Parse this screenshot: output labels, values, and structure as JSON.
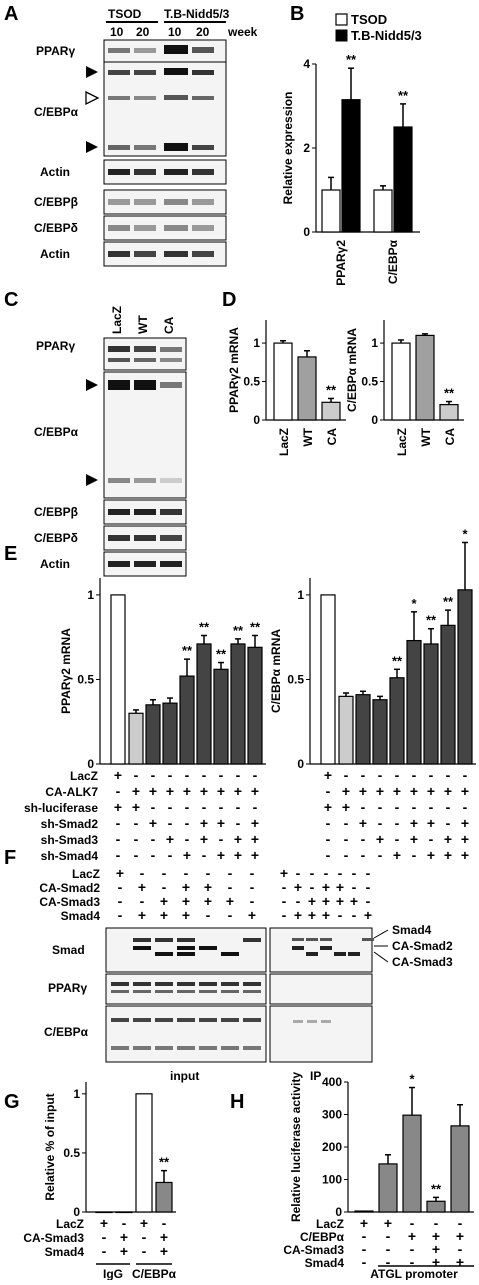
{
  "panels": {
    "A": "A",
    "B": "B",
    "C": "C",
    "D": "D",
    "E": "E",
    "F": "F",
    "G": "G",
    "H": "H"
  },
  "panel_a": {
    "groups": [
      "TSOD",
      "T.B-Nidd5/3"
    ],
    "weeks": [
      "10",
      "20",
      "10",
      "20"
    ],
    "week_label": "week",
    "blots": [
      "PPARγ",
      "C/EBPα",
      "Actin",
      "C/EBPβ",
      "C/EBPδ",
      "Actin"
    ]
  },
  "panel_c": {
    "lanes": [
      "LacZ",
      "WT",
      "CA"
    ],
    "blots": [
      "PPARγ",
      "C/EBPα",
      "C/EBPβ",
      "C/EBPδ",
      "Actin"
    ]
  },
  "panel_f": {
    "rows": [
      "LacZ",
      "CA-Smad2",
      "CA-Smad3",
      "Smad4"
    ],
    "blots": [
      "Smad",
      "PPARγ",
      "C/EBPα"
    ],
    "band_labels": [
      "Smad4",
      "CA-Smad2",
      "CA-Smad3"
    ],
    "bottom": [
      "input",
      "IP"
    ],
    "signs": [
      [
        "+",
        "-",
        "-",
        "-",
        "-",
        "-",
        "-"
      ],
      [
        "-",
        "+",
        "-",
        "+",
        "+",
        "-",
        "-"
      ],
      [
        "-",
        "-",
        "+",
        "+",
        "+",
        "+",
        "-"
      ],
      [
        "-",
        "+",
        "+",
        "+",
        "-",
        "-",
        "+"
      ]
    ]
  },
  "chart_data": [
    {
      "panel": "B",
      "type": "bar",
      "categories": [
        "PPARγ2",
        "C/EBPα"
      ],
      "series": [
        {
          "name": "TSOD",
          "values": [
            1.0,
            1.0
          ],
          "errors": [
            0.3,
            0.1
          ]
        },
        {
          "name": "T.B-Nidd5/3",
          "values": [
            3.15,
            2.5
          ],
          "errors": [
            0.75,
            0.55
          ]
        }
      ],
      "significance": [
        "**",
        "**"
      ],
      "ylabel": "Relative expression",
      "ylim": [
        0,
        4
      ],
      "yticks": [
        0,
        2,
        4
      ]
    },
    {
      "panel": "D-left",
      "type": "bar",
      "categories": [
        "LacZ",
        "WT",
        "CA"
      ],
      "values": [
        1.0,
        0.82,
        0.23
      ],
      "errors": [
        0.03,
        0.08,
        0.05
      ],
      "significance": [
        "",
        "",
        "**"
      ],
      "ylabel": "PPARγ2 mRNA",
      "ylim": [
        0,
        1.3
      ],
      "yticks": [
        0,
        0.5,
        1
      ]
    },
    {
      "panel": "D-right",
      "type": "bar",
      "categories": [
        "LacZ",
        "WT",
        "CA"
      ],
      "values": [
        1.0,
        1.1,
        0.2
      ],
      "errors": [
        0.04,
        0.02,
        0.04
      ],
      "significance": [
        "",
        "",
        "**"
      ],
      "ylabel": "C/EBPα mRNA",
      "ylim": [
        0,
        1.3
      ],
      "yticks": [
        0,
        0.5,
        1
      ]
    },
    {
      "panel": "E-left",
      "type": "bar",
      "values": [
        1.0,
        0.3,
        0.35,
        0.36,
        0.52,
        0.71,
        0.56,
        0.71,
        0.69
      ],
      "errors": [
        0,
        0.02,
        0.03,
        0.03,
        0.1,
        0.05,
        0.04,
        0.03,
        0.07
      ],
      "significance": [
        "",
        "",
        "",
        "",
        "**",
        "**",
        "**",
        "**",
        "**"
      ],
      "ylabel": "PPARγ2 mRNA",
      "ylim": [
        0,
        1.1
      ],
      "yticks": [
        0,
        0.5,
        1
      ]
    },
    {
      "panel": "E-right",
      "type": "bar",
      "values": [
        1.0,
        0.4,
        0.41,
        0.38,
        0.51,
        0.73,
        0.71,
        0.82,
        1.03
      ],
      "errors": [
        0,
        0.02,
        0.02,
        0.02,
        0.05,
        0.17,
        0.09,
        0.09,
        0.28
      ],
      "significance": [
        "",
        "",
        "",
        "",
        "**",
        "*",
        "**",
        "**",
        "*"
      ],
      "ylabel": "C/EBPα mRNA",
      "ylim": [
        0,
        1.1
      ],
      "yticks": [
        0,
        0.5,
        1
      ]
    },
    {
      "panel": "G",
      "type": "bar",
      "values": [
        0.0,
        0.0,
        1.0,
        0.25
      ],
      "errors": [
        0,
        0,
        0,
        0.1
      ],
      "significance": [
        "",
        "",
        "",
        "**"
      ],
      "ylabel": "Relative % of input",
      "ylim": [
        0,
        1.1
      ],
      "yticks": [
        0,
        0.5,
        1
      ],
      "group_labels": [
        "IgG",
        "C/EBPα"
      ]
    },
    {
      "panel": "H",
      "type": "bar",
      "values": [
        3,
        148,
        298,
        33,
        265
      ],
      "errors": [
        0,
        28,
        85,
        12,
        65
      ],
      "significance": [
        "",
        "",
        "*",
        "**",
        ""
      ],
      "ylabel": "Relative luciferase activity",
      "ylim": [
        0,
        400
      ],
      "yticks": [
        0,
        100,
        200,
        300,
        400
      ],
      "group_label": "ATGL promoter"
    }
  ],
  "panel_e_conditions": {
    "rows": [
      "LacZ",
      "CA-ALK7",
      "sh-luciferase",
      "sh-Smad2",
      "sh-Smad3",
      "sh-Smad4"
    ],
    "signs": [
      [
        "+",
        "-",
        "-",
        "-",
        "-",
        "-",
        "-",
        "-",
        "-"
      ],
      [
        "-",
        "+",
        "+",
        "+",
        "+",
        "+",
        "+",
        "+",
        "+"
      ],
      [
        "+",
        "+",
        "-",
        "-",
        "-",
        "-",
        "-",
        "-",
        "-"
      ],
      [
        "-",
        "-",
        "+",
        "-",
        "-",
        "+",
        "+",
        "-",
        "+"
      ],
      [
        "-",
        "-",
        "-",
        "+",
        "-",
        "+",
        "-",
        "+",
        "+"
      ],
      [
        "-",
        "-",
        "-",
        "-",
        "+",
        "-",
        "+",
        "+",
        "+"
      ]
    ]
  },
  "panel_g_conditions": {
    "rows": [
      "LacZ",
      "CA-Smad3",
      "Smad4"
    ],
    "signs": [
      [
        "+",
        "-",
        "+",
        "-"
      ],
      [
        "-",
        "+",
        "-",
        "+"
      ],
      [
        "-",
        "+",
        "-",
        "+"
      ]
    ]
  },
  "panel_h_conditions": {
    "rows": [
      "LacZ",
      "C/EBPα",
      "CA-Smad3",
      "Smad4"
    ],
    "signs": [
      [
        "+",
        "+",
        "-",
        "-",
        "-"
      ],
      [
        "-",
        "-",
        "+",
        "+",
        "+"
      ],
      [
        "-",
        "-",
        "-",
        "+",
        "-"
      ],
      [
        "-",
        "-",
        "-",
        "+",
        "+"
      ]
    ]
  },
  "colors": {
    "black": "#000000",
    "white": "#ffffff",
    "gray": "#a0a0a0",
    "light_gray": "#cccccc",
    "dark_gray": "#444444",
    "mid_gray": "#888888"
  }
}
